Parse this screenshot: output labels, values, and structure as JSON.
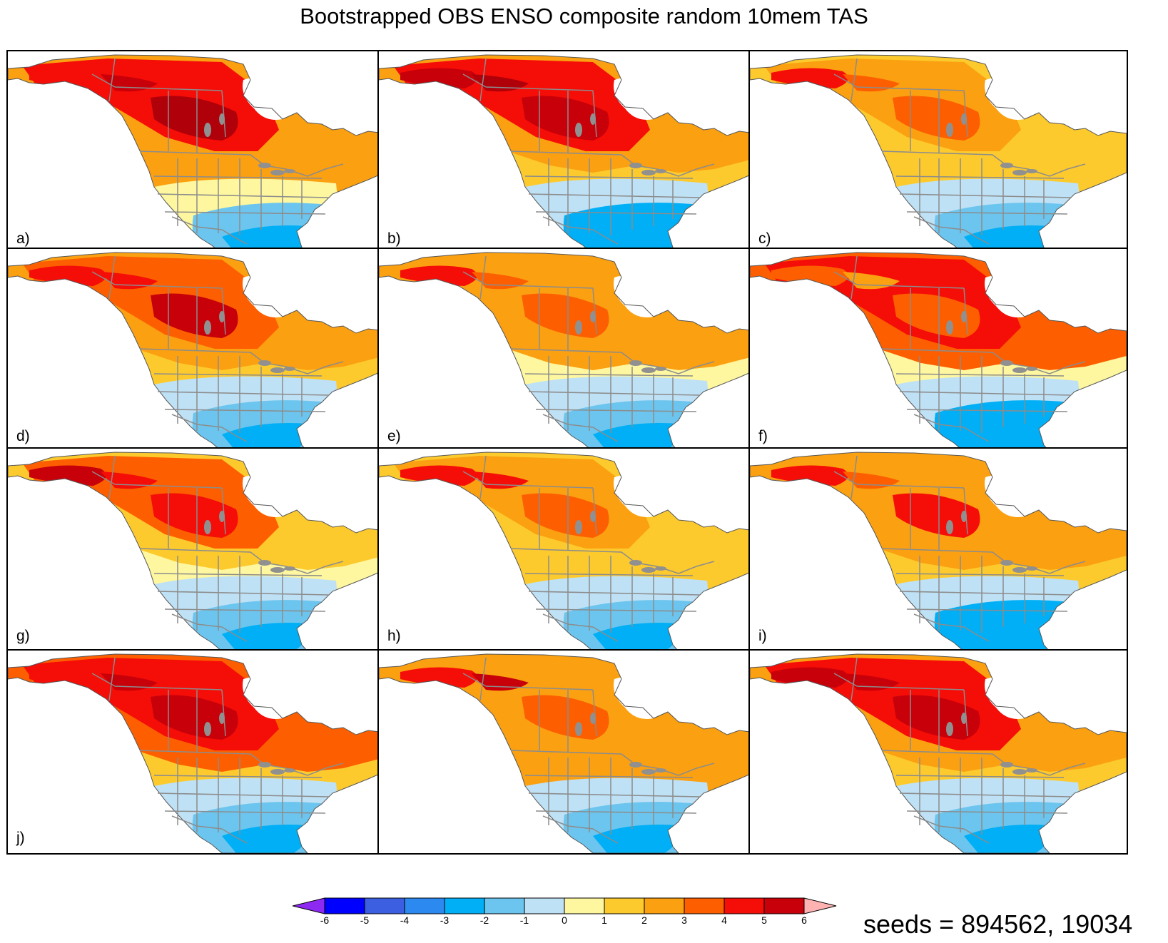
{
  "title": "Bootstrapped OBS ENSO composite random 10mem TAS",
  "seeds_text": "seeds = 894562, 19034",
  "panels": [
    {
      "label": "a)",
      "alaska": 4,
      "canada_west": 5,
      "canada_center": 6,
      "east_canada": 2,
      "northern_us": 2,
      "central_us": 0,
      "southeast_us": -2
    },
    {
      "label": "b)",
      "alaska": 5,
      "canada_west": 6,
      "canada_center": 5,
      "east_canada": 2,
      "northern_us": 1,
      "central_us": -1,
      "southeast_us": -3
    },
    {
      "label": "c)",
      "alaska": 4,
      "canada_west": 3,
      "canada_center": 3,
      "east_canada": 1,
      "northern_us": 1,
      "central_us": -1,
      "southeast_us": -2
    },
    {
      "label": "d)",
      "alaska": 4,
      "canada_west": 4,
      "canada_center": 5,
      "east_canada": 2,
      "northern_us": 1,
      "central_us": -1,
      "southeast_us": -2
    },
    {
      "label": "e)",
      "alaska": 4,
      "canada_west": 3,
      "canada_center": 3,
      "east_canada": 2,
      "northern_us": 0,
      "central_us": -1,
      "southeast_us": -2
    },
    {
      "label": "f)",
      "alaska": 3,
      "canada_west": 2,
      "canada_center": 3,
      "east_canada": 3,
      "northern_us": 0,
      "central_us": -1,
      "southeast_us": -3
    },
    {
      "label": "g)",
      "alaska": 5,
      "canada_west": 4,
      "canada_center": 4,
      "east_canada": 1,
      "northern_us": 0,
      "central_us": -1,
      "southeast_us": -2
    },
    {
      "label": "h)",
      "alaska": 4,
      "canada_west": 4,
      "canada_center": 3,
      "east_canada": 1,
      "northern_us": 1,
      "central_us": -1,
      "southeast_us": -2
    },
    {
      "label": "i)",
      "alaska": 4,
      "canada_west": 3,
      "canada_center": 4,
      "east_canada": 2,
      "northern_us": 1,
      "central_us": -1,
      "southeast_us": -3
    },
    {
      "label": "j)",
      "alaska": 4,
      "canada_west": 5,
      "canada_center": 5,
      "east_canada": 3,
      "northern_us": 1,
      "central_us": -1,
      "southeast_us": -2
    },
    {
      "label": "",
      "alaska": 4,
      "canada_west": 5,
      "canada_center": 3,
      "east_canada": 2,
      "northern_us": 2,
      "central_us": -1,
      "southeast_us": -2
    },
    {
      "label": "",
      "alaska": 5,
      "canada_west": 5,
      "canada_center": 5,
      "east_canada": 2,
      "northern_us": 1,
      "central_us": -1,
      "southeast_us": -2
    }
  ],
  "colorbar": {
    "ticks": [
      "-6",
      "-5",
      "-4",
      "-3",
      "-2",
      "-1",
      "0",
      "1",
      "2",
      "3",
      "4",
      "5",
      "6"
    ],
    "low_extension_color": "#8d29f0",
    "high_extension_color": "#ffb2b2",
    "box_colors": [
      "#0000ff",
      "#3b5fe0",
      "#2c89ef",
      "#00aff5",
      "#6cc5ee",
      "#bfe1f5",
      "#fef7a0",
      "#fdca2d",
      "#fba010",
      "#fd5f00",
      "#f50d08",
      "#c8000a"
    ]
  },
  "palette": {
    "-3": "#00aff5",
    "-2": "#6cc5ee",
    "-1": "#bfe1f5",
    "0": "#fef7a0",
    "1": "#fdca2d",
    "2": "#fba010",
    "3": "#fd5f00",
    "4": "#f50d08",
    "5": "#c8000a",
    "6": "#b0000a",
    "ocean": "#ffffff",
    "coast": "#555555",
    "border": "#8c8c8c",
    "lakes": "#909090"
  }
}
